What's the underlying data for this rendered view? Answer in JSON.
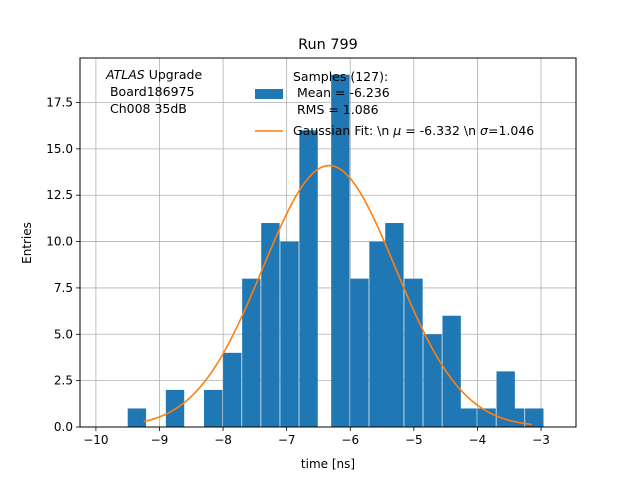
{
  "chart_data": {
    "type": "bar",
    "title": "Run 799",
    "xlabel": "time [ns]",
    "ylabel": "Entries",
    "xlim": [
      -10.25,
      -2.45
    ],
    "ylim": [
      0,
      19.9
    ],
    "xticks": [
      -10,
      -9,
      -8,
      -7,
      -6,
      -5,
      -4,
      -3
    ],
    "xtick_labels": [
      "−10",
      "−9",
      "−8",
      "−7",
      "−6",
      "−5",
      "−4",
      "−3"
    ],
    "yticks": [
      0,
      2.5,
      5,
      7.5,
      10,
      12.5,
      15,
      17.5
    ],
    "ytick_labels": [
      "0.0",
      "2.5",
      "5.0",
      "7.5",
      "10.0",
      "12.5",
      "15.0",
      "17.5"
    ],
    "grid": true,
    "bar_color": "#1f77b4",
    "fit_color": "#ff7f0e",
    "bin_width": 0.2887,
    "histogram": {
      "bin_left_edges": [
        -9.5,
        -8.9,
        -8.3,
        -8.0,
        -7.7,
        -7.4,
        -7.1,
        -6.8,
        -6.3,
        -6.0,
        -5.7,
        -5.45,
        -5.15,
        -4.85,
        -4.55,
        -4.0,
        -3.7,
        -3.25
      ],
      "counts": [
        1,
        2,
        2,
        4,
        8,
        11,
        10,
        16,
        19,
        8,
        10,
        11,
        8,
        5,
        6,
        1,
        3,
        1
      ],
      "extra_bins": [
        {
          "left": -4.3,
          "count": 1
        },
        {
          "left": -3.55,
          "count": 1
        }
      ]
    },
    "series": [
      {
        "name": "Samples (127):\n Mean = -6.236\n RMS = 1.086",
        "kind": "histogram"
      },
      {
        "name": "Gaussian Fit: \\n μ = -6.332 \\n σ=1.046",
        "kind": "line"
      }
    ],
    "fit": {
      "mu": -6.332,
      "sigma": 1.046,
      "amplitude": 14.1,
      "x_range": [
        -9.25,
        -3.15
      ]
    },
    "annotation": {
      "line1_italic": "ATLAS",
      "line1_rest": " Upgrade",
      "line2": " Board186975",
      "line3": " Ch008 35dB"
    },
    "legend": {
      "placement": "top-center",
      "hist_lines": [
        "Samples (127):",
        " Mean = -6.236",
        " RMS = 1.086"
      ],
      "fit_prefix": "Gaussian Fit: \\n ",
      "fit_mu_symbol": "μ",
      "fit_mu_value": " = -6.332 \\n ",
      "fit_sigma_symbol": "σ",
      "fit_sigma_value": "=1.046"
    }
  }
}
